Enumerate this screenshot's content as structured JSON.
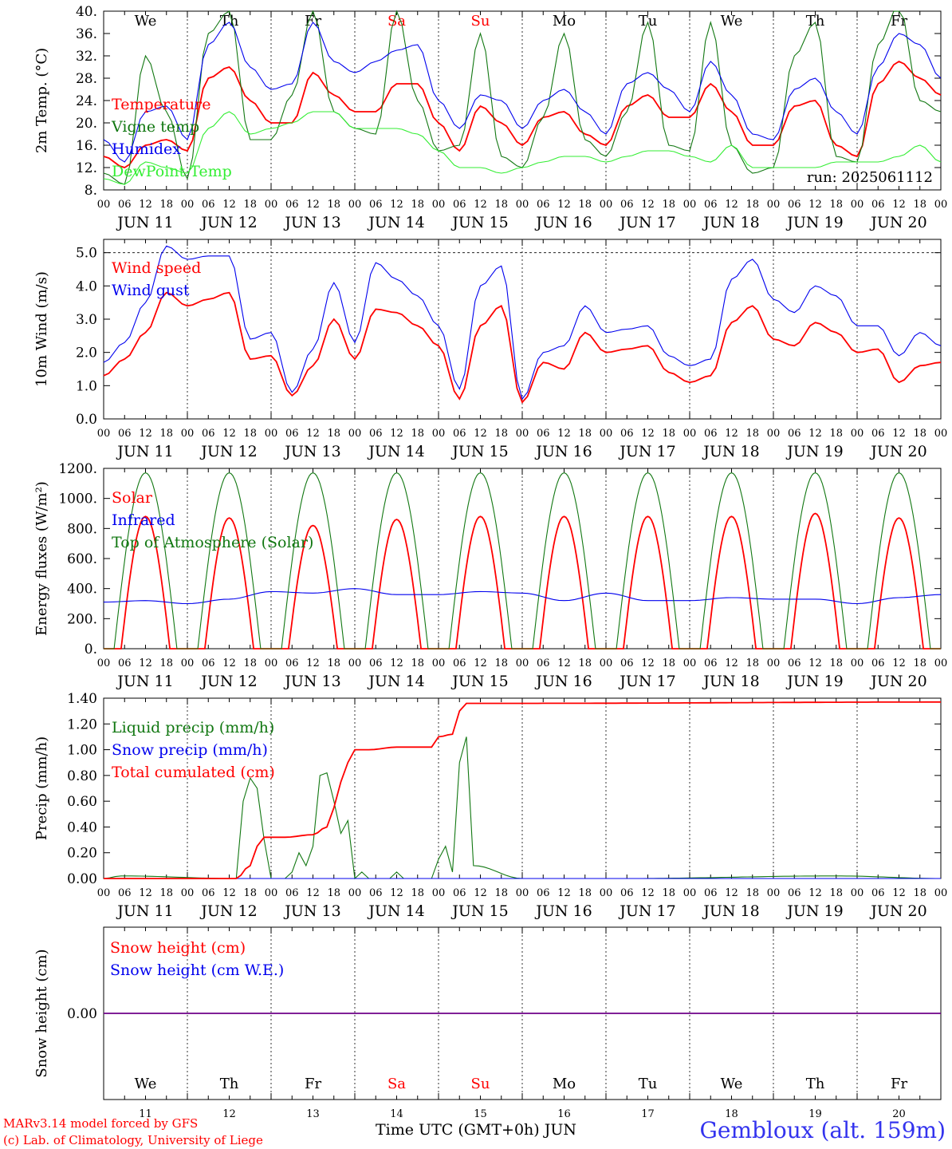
{
  "footer": {
    "model_line": "MARv3.14 model forced by GFS",
    "credit_line": "(c) Lab. of Climatology, University of Liege",
    "time_label": "Time UTC (GMT+0h) JUN",
    "station": "Gembloux (alt. 159m)"
  },
  "chart_data": [
    {
      "type": "line",
      "ylabel": "2m Temp. (°C)",
      "ylim": [
        8,
        40
      ],
      "yticks": [
        "8.",
        "12.",
        "16.",
        "20.",
        "24.",
        "28.",
        "32.",
        "36.",
        "40."
      ],
      "ytick_values": [
        8,
        12,
        16,
        20,
        24,
        28,
        32,
        36,
        40
      ],
      "x_unit": "hours since JUN 11 00 UTC",
      "xlim": [
        0,
        240
      ],
      "day_names": [
        "We",
        "Th",
        "Fr",
        "Sa",
        "Su",
        "Mo",
        "Tu",
        "We",
        "Th",
        "Fr"
      ],
      "weekend_days": [
        3,
        4
      ],
      "day_labels": [
        "JUN 11",
        "JUN 12",
        "JUN 13",
        "JUN 14",
        "JUN 15",
        "JUN 16",
        "JUN 17",
        "JUN 18",
        "JUN 19",
        "JUN 20"
      ],
      "hour_ticks": [
        "00",
        "06",
        "12",
        "18"
      ],
      "hour_end": "00",
      "annotation": "run: 2025061112",
      "series": [
        {
          "name": "Temperature",
          "color": "#ff0000",
          "x": [
            0,
            6,
            12,
            18,
            24,
            30,
            36,
            42,
            48,
            54,
            60,
            66,
            72,
            78,
            84,
            90,
            96,
            102,
            108,
            114,
            120,
            126,
            132,
            138,
            144,
            150,
            156,
            162,
            168,
            174,
            180,
            186,
            192,
            198,
            204,
            210,
            216,
            222,
            228,
            234,
            240
          ],
          "values": [
            14,
            12,
            16,
            17,
            15,
            28,
            30,
            24,
            20,
            20,
            29,
            25,
            22,
            22,
            27,
            27,
            20,
            15,
            23,
            20,
            16,
            21,
            22,
            18,
            16,
            23,
            25,
            21,
            21,
            27,
            22,
            16,
            16,
            23,
            24,
            16,
            14,
            27,
            31,
            28,
            25
          ]
        },
        {
          "name": "Vigne temp",
          "color": "#117711",
          "x": [
            0,
            6,
            12,
            18,
            24,
            30,
            36,
            42,
            48,
            54,
            60,
            66,
            72,
            78,
            84,
            90,
            96,
            102,
            108,
            114,
            120,
            126,
            132,
            138,
            144,
            150,
            156,
            162,
            168,
            174,
            180,
            186,
            192,
            198,
            204,
            210,
            216,
            222,
            228,
            234,
            240
          ],
          "values": [
            11,
            9,
            32,
            22,
            10,
            36,
            40,
            17,
            17,
            25,
            40,
            22,
            19,
            18,
            40,
            24,
            15,
            16,
            36,
            14,
            12,
            21,
            36,
            17,
            14,
            22,
            38,
            16,
            15,
            38,
            16,
            11,
            12,
            32,
            38,
            14,
            13,
            34,
            41,
            24,
            22
          ]
        },
        {
          "name": "Humidex",
          "color": "#0000ee",
          "x": [
            0,
            6,
            12,
            18,
            24,
            30,
            36,
            42,
            48,
            54,
            60,
            66,
            72,
            78,
            84,
            90,
            96,
            102,
            108,
            114,
            120,
            126,
            132,
            138,
            144,
            150,
            156,
            162,
            168,
            174,
            180,
            186,
            192,
            198,
            204,
            210,
            216,
            222,
            228,
            234,
            240
          ],
          "values": [
            17,
            13,
            22,
            23,
            17,
            34,
            38,
            30,
            26,
            27,
            38,
            31,
            29,
            31,
            33,
            34,
            24,
            19,
            25,
            24,
            19,
            24,
            26,
            22,
            18,
            27,
            29,
            26,
            22,
            31,
            25,
            18,
            17,
            26,
            28,
            22,
            18,
            30,
            36,
            34,
            28
          ]
        },
        {
          "name": "DewPoint Temp",
          "color": "#33ee33",
          "x": [
            0,
            6,
            12,
            18,
            24,
            30,
            36,
            42,
            48,
            54,
            60,
            66,
            72,
            78,
            84,
            90,
            96,
            102,
            108,
            114,
            120,
            126,
            132,
            138,
            144,
            150,
            156,
            162,
            168,
            174,
            180,
            186,
            192,
            198,
            204,
            210,
            216,
            222,
            228,
            234,
            240
          ],
          "values": [
            10,
            9,
            13,
            12,
            11,
            19,
            22,
            18,
            19,
            20,
            22,
            22,
            19,
            19,
            19,
            18,
            15,
            12,
            12,
            11,
            12,
            13,
            14,
            14,
            13,
            14,
            15,
            15,
            14,
            13,
            16,
            12,
            12,
            12,
            12,
            13,
            13,
            13,
            14,
            16,
            13
          ]
        }
      ]
    },
    {
      "type": "line",
      "ylabel": "10m Wind (m/s)",
      "ylim": [
        0,
        5.4
      ],
      "yticks": [
        "0.0",
        "1.0",
        "2.0",
        "3.0",
        "4.0",
        "5.0"
      ],
      "ytick_values": [
        0,
        1,
        2,
        3,
        4,
        5
      ],
      "reference_line": 5,
      "x_unit": "hours since JUN 11 00 UTC",
      "xlim": [
        0,
        240
      ],
      "day_labels": [
        "JUN 11",
        "JUN 12",
        "JUN 13",
        "JUN 14",
        "JUN 15",
        "JUN 16",
        "JUN 17",
        "JUN 18",
        "JUN 19",
        "JUN 20"
      ],
      "hour_ticks": [
        "00",
        "06",
        "12",
        "18"
      ],
      "hour_end": "00",
      "series": [
        {
          "name": "Wind speed",
          "color": "#ff0000",
          "x": [
            0,
            6,
            12,
            18,
            24,
            30,
            36,
            42,
            48,
            54,
            60,
            66,
            72,
            78,
            84,
            90,
            96,
            102,
            108,
            114,
            120,
            126,
            132,
            138,
            144,
            150,
            156,
            162,
            168,
            174,
            180,
            186,
            192,
            198,
            204,
            210,
            216,
            222,
            228,
            234,
            240
          ],
          "values": [
            1.3,
            1.8,
            2.6,
            3.8,
            3.4,
            3.6,
            3.8,
            1.8,
            1.9,
            0.7,
            1.6,
            3.0,
            1.8,
            3.3,
            3.2,
            2.8,
            2.2,
            0.6,
            2.8,
            3.4,
            0.5,
            1.7,
            1.5,
            2.6,
            2.0,
            2.1,
            2.2,
            1.4,
            1.1,
            1.3,
            2.9,
            3.4,
            2.4,
            2.2,
            2.9,
            2.6,
            2.0,
            2.1,
            1.1,
            1.6,
            1.7
          ]
        },
        {
          "name": "Wind gust",
          "color": "#0000ee",
          "x": [
            0,
            6,
            12,
            18,
            24,
            30,
            36,
            42,
            48,
            54,
            60,
            66,
            72,
            78,
            84,
            90,
            96,
            102,
            108,
            114,
            120,
            126,
            132,
            138,
            144,
            150,
            156,
            162,
            168,
            174,
            180,
            186,
            192,
            198,
            204,
            210,
            216,
            222,
            228,
            234,
            240
          ],
          "values": [
            1.7,
            2.3,
            3.5,
            5.2,
            4.8,
            4.9,
            4.9,
            2.4,
            2.6,
            0.8,
            2.1,
            4.1,
            2.3,
            4.7,
            4.2,
            3.7,
            2.8,
            0.9,
            4.0,
            4.6,
            0.6,
            2.0,
            2.2,
            3.4,
            2.6,
            2.7,
            2.8,
            1.9,
            1.6,
            1.8,
            4.2,
            4.8,
            3.6,
            3.2,
            4.0,
            3.7,
            2.8,
            2.8,
            1.9,
            2.6,
            2.2
          ]
        }
      ]
    },
    {
      "type": "line",
      "ylabel": "Energy fluxes (W/m²)",
      "ylim": [
        0,
        1200
      ],
      "yticks": [
        "0.",
        "200.",
        "400.",
        "600.",
        "800.",
        "1000.",
        "1200."
      ],
      "ytick_values": [
        0,
        200,
        400,
        600,
        800,
        1000,
        1200
      ],
      "x_unit": "hours since JUN 11 00 UTC",
      "xlim": [
        0,
        240
      ],
      "day_labels": [
        "JUN 11",
        "JUN 12",
        "JUN 13",
        "JUN 14",
        "JUN 15",
        "JUN 16",
        "JUN 17",
        "JUN 18",
        "JUN 19",
        "JUN 20"
      ],
      "hour_ticks": [
        "00",
        "06",
        "12",
        "18"
      ],
      "hour_end": "00",
      "series": [
        {
          "name": "Solar",
          "color": "#ff0000",
          "daily_peaks": [
            880,
            870,
            820,
            860,
            880,
            880,
            880,
            880,
            900,
            870
          ]
        },
        {
          "name": "Infrared",
          "color": "#0000ee",
          "x": [
            0,
            12,
            24,
            36,
            48,
            60,
            72,
            84,
            96,
            108,
            120,
            132,
            144,
            156,
            168,
            180,
            192,
            204,
            216,
            228,
            240
          ],
          "values": [
            310,
            320,
            300,
            330,
            380,
            370,
            400,
            360,
            360,
            380,
            370,
            320,
            370,
            320,
            320,
            340,
            330,
            330,
            300,
            340,
            360
          ]
        },
        {
          "name": "Top of Atmosphere (Solar)",
          "color": "#117711",
          "daily_peaks": [
            1170,
            1170,
            1170,
            1170,
            1170,
            1170,
            1170,
            1170,
            1170,
            1170
          ]
        }
      ]
    },
    {
      "type": "line",
      "ylabel": "Precip (mm/h)",
      "ylim": [
        0,
        1.4
      ],
      "yticks": [
        "0.00",
        "0.20",
        "0.40",
        "0.60",
        "0.80",
        "1.00",
        "1.20",
        "1.40"
      ],
      "ytick_values": [
        0,
        0.2,
        0.4,
        0.6,
        0.8,
        1.0,
        1.2,
        1.4
      ],
      "x_unit": "hours since JUN 11 00 UTC",
      "xlim": [
        0,
        240
      ],
      "day_labels": [
        "JUN 11",
        "JUN 12",
        "JUN 13",
        "JUN 14",
        "JUN 15",
        "JUN 16",
        "JUN 17",
        "JUN 18",
        "JUN 19",
        "JUN 20"
      ],
      "hour_ticks": [
        "00",
        "06",
        "12",
        "18"
      ],
      "hour_end": "00",
      "series": [
        {
          "name": "Liquid precip (mm/h)",
          "color": "#117711",
          "x": [
            0,
            5,
            38,
            40,
            42,
            44,
            46,
            48,
            52,
            54,
            56,
            58,
            60,
            62,
            64,
            66,
            68,
            70,
            72,
            74,
            76,
            82,
            84,
            86,
            90,
            94,
            96,
            98,
            100,
            102,
            104,
            106,
            120,
            150,
            210,
            240
          ],
          "values": [
            0,
            0.02,
            0,
            0.6,
            0.78,
            0.7,
            0.3,
            0,
            0,
            0.05,
            0.2,
            0.1,
            0.25,
            0.8,
            0.82,
            0.6,
            0.35,
            0.45,
            0,
            0.05,
            0,
            0,
            0.05,
            0,
            0,
            0,
            0.15,
            0.25,
            0.05,
            0.9,
            1.1,
            0.1,
            0,
            0,
            0.02,
            0
          ]
        },
        {
          "name": "Snow precip (mm/h)",
          "color": "#0000ee",
          "x": [
            0,
            240
          ],
          "values": [
            0,
            0
          ]
        },
        {
          "name": "Total cumulated (cm)",
          "color": "#ff0000",
          "x": [
            0,
            38,
            42,
            44,
            46,
            52,
            60,
            64,
            66,
            68,
            70,
            72,
            76,
            84,
            90,
            94,
            96,
            100,
            102,
            104,
            120,
            240
          ],
          "values": [
            0,
            0,
            0.1,
            0.25,
            0.32,
            0.32,
            0.34,
            0.4,
            0.55,
            0.75,
            0.9,
            1.0,
            1.0,
            1.02,
            1.02,
            1.02,
            1.1,
            1.12,
            1.3,
            1.36,
            1.36,
            1.37
          ]
        }
      ]
    },
    {
      "type": "line",
      "ylabel": "Snow height (cm)",
      "ylim": [
        -1,
        1
      ],
      "yticks": [
        "0.00"
      ],
      "ytick_values": [
        0
      ],
      "x_unit": "hours since JUN 11 00 UTC",
      "xlim": [
        0,
        240
      ],
      "day_names": [
        "We",
        "Th",
        "Fr",
        "Sa",
        "Su",
        "Mo",
        "Tu",
        "We",
        "Th",
        "Fr"
      ],
      "weekend_days": [
        3,
        4
      ],
      "day_numbers": [
        "11",
        "12",
        "13",
        "14",
        "15",
        "16",
        "17",
        "18",
        "19",
        "20"
      ],
      "series": [
        {
          "name": "Snow height (cm)",
          "color": "#ff0000",
          "x": [
            0,
            240
          ],
          "values": [
            0,
            0
          ]
        },
        {
          "name": "Snow height (cm W.E.)",
          "color": "#0000ee",
          "x": [
            0,
            240
          ],
          "values": [
            0,
            0
          ]
        }
      ]
    }
  ]
}
